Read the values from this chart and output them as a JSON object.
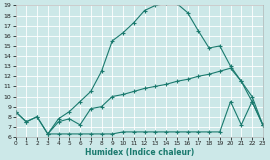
{
  "xlabel": "Humidex (Indice chaleur)",
  "background_color": "#cce8e8",
  "grid_color": "#ffffff",
  "line_color": "#1a7a6e",
  "xlim": [
    0,
    23
  ],
  "ylim": [
    6,
    19
  ],
  "xticks": [
    0,
    1,
    2,
    3,
    4,
    5,
    6,
    7,
    8,
    9,
    10,
    11,
    12,
    13,
    14,
    15,
    16,
    17,
    18,
    19,
    20,
    21,
    22,
    23
  ],
  "yticks": [
    6,
    7,
    8,
    9,
    10,
    11,
    12,
    13,
    14,
    15,
    16,
    17,
    18,
    19
  ],
  "line_top_x": [
    0,
    1,
    2,
    3,
    4,
    5,
    6,
    7,
    8,
    9,
    10,
    11,
    12,
    13,
    14,
    15,
    16,
    17,
    18,
    19,
    20,
    21,
    22,
    23
  ],
  "line_top_y": [
    8.5,
    7.5,
    8.0,
    6.3,
    7.8,
    8.5,
    9.5,
    10.5,
    12.5,
    15.5,
    16.3,
    17.3,
    18.5,
    19.0,
    19.2,
    19.2,
    18.3,
    16.5,
    14.8,
    15.0,
    13.0,
    11.5,
    9.5,
    7.2
  ],
  "line_mid_x": [
    0,
    1,
    2,
    3,
    4,
    5,
    6,
    7,
    8,
    9,
    10,
    11,
    12,
    13,
    14,
    15,
    16,
    17,
    18,
    19,
    20,
    21,
    22,
    23
  ],
  "line_mid_y": [
    8.5,
    7.5,
    8.0,
    6.3,
    7.5,
    7.8,
    7.2,
    8.8,
    9.0,
    10.0,
    10.2,
    10.5,
    10.8,
    11.0,
    11.2,
    11.5,
    11.7,
    12.0,
    12.2,
    12.5,
    12.8,
    11.5,
    10.0,
    7.2
  ],
  "line_bot_x": [
    3,
    4,
    5,
    6,
    7,
    8,
    9,
    10,
    11,
    12,
    13,
    14,
    15,
    16,
    17,
    18,
    19,
    20,
    21,
    22,
    23
  ],
  "line_bot_y": [
    6.3,
    6.3,
    6.3,
    6.3,
    6.3,
    6.3,
    6.3,
    6.5,
    6.5,
    6.5,
    6.5,
    6.5,
    6.5,
    6.5,
    6.5,
    6.5,
    6.5,
    9.5,
    7.2,
    9.5,
    7.2
  ]
}
